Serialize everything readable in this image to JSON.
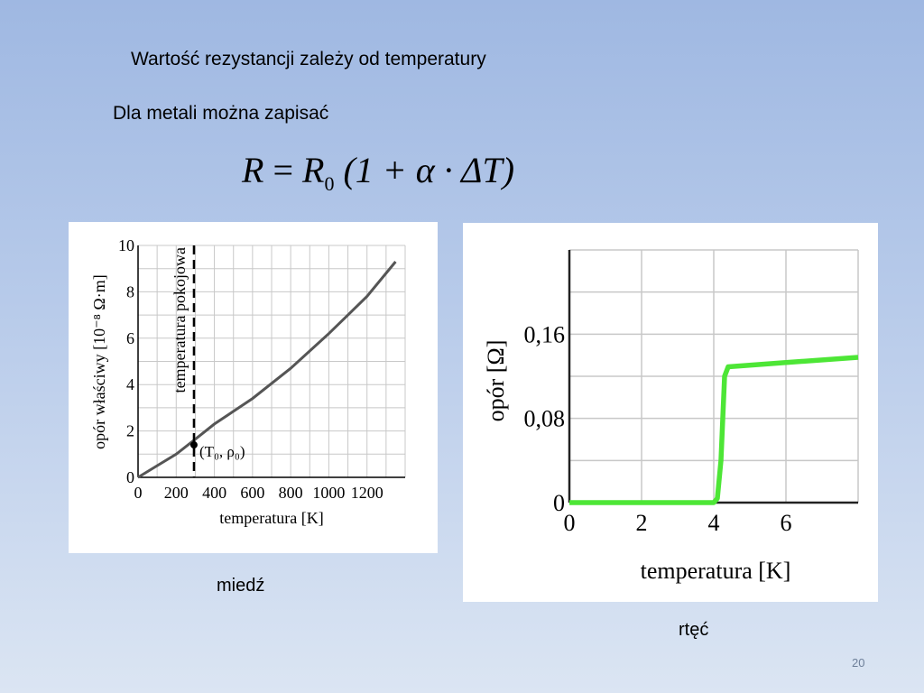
{
  "slide": {
    "heading": "Wartość rezystancji zależy od temperatury",
    "subheading": "Dla metali można zapisać",
    "formula": {
      "r": "R",
      "eq": " = ",
      "r0": "R",
      "sub0": "0",
      "rest": " (1 + α · ΔT)"
    },
    "caption_copper": "miedź",
    "caption_mercury": "rtęć",
    "slide_number": "20"
  },
  "chart_data": [
    {
      "type": "line",
      "xlabel": "temperatura [K]",
      "ylabel": "opór właściwy [10⁻⁸ Ω·m]",
      "xlim": [
        0,
        1400
      ],
      "ylim": [
        0,
        10
      ],
      "x_ticks": [
        "0",
        "200",
        "400",
        "600",
        "800",
        "1000",
        "1200"
      ],
      "y_ticks": [
        "0",
        "2",
        "4",
        "6",
        "8",
        "10"
      ],
      "grid": true,
      "series": [
        {
          "x": [
            0,
            100,
            200,
            293,
            400,
            600,
            800,
            1000,
            1200,
            1350
          ],
          "y": [
            0,
            0.5,
            1.0,
            1.6,
            2.3,
            3.4,
            4.7,
            6.2,
            7.8,
            9.3
          ]
        }
      ],
      "annotations": [
        {
          "text": "temperatura pokojowa",
          "x": 293
        },
        {
          "text": "(T₀, ρ₀)",
          "x": 293,
          "y": 1.4
        }
      ],
      "line_color": "#555555"
    },
    {
      "type": "line",
      "xlabel": "temperatura [K]",
      "ylabel": "opór [Ω]",
      "xlim": [
        0,
        8
      ],
      "ylim": [
        0,
        0.24
      ],
      "x_ticks": [
        "0",
        "2",
        "4",
        "6"
      ],
      "y_ticks": [
        "0",
        "0,08",
        "0,16"
      ],
      "grid": true,
      "series": [
        {
          "x": [
            0,
            4.0,
            4.1,
            4.2,
            4.3,
            4.4,
            6,
            8
          ],
          "y": [
            0,
            0,
            0.004,
            0.04,
            0.12,
            0.129,
            0.133,
            0.138
          ]
        }
      ],
      "line_color": "#4de636"
    }
  ]
}
